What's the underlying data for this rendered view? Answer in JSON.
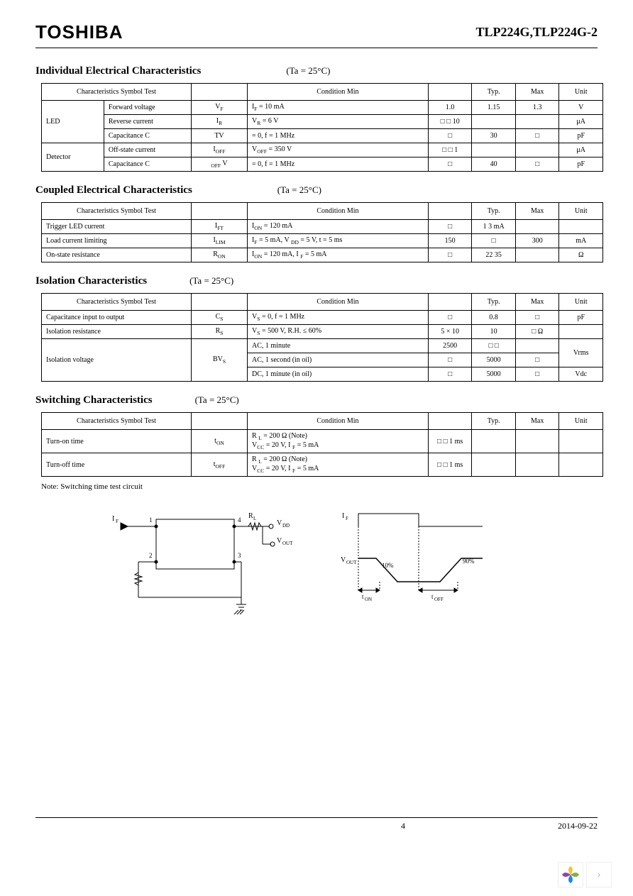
{
  "header": {
    "brand": "TOSHIBA",
    "part_number": "TLP224G,TLP224G-2"
  },
  "sections": [
    {
      "title": "Individual Electrical Characteristics",
      "cond_label": "(Ta  = 25°C)",
      "headers": [
        "Characteristics Symbol Test",
        "",
        "Condition Min",
        "",
        "Typ.",
        "Max",
        "Unit"
      ],
      "col_widths": [
        "10%",
        "14%",
        "9%",
        "29%",
        "7%",
        "7%",
        "7%",
        "7%"
      ],
      "rows": [
        {
          "group": "LED",
          "group_span": 3,
          "char": "Forward voltage",
          "sym": "V",
          "sub": "F",
          "cond": "I<sub>F</sub>  = 10 mA",
          "min": "1.0",
          "typ": "1.15",
          "max": "1.3",
          "unit": "V"
        },
        {
          "char": "Reverse current",
          "sym": "I",
          "sub": "R",
          "cond": "V<sub>R</sub>  = 6 V",
          "min": "□ □ 10",
          "typ": "",
          "max": "",
          "unit": "μA"
        },
        {
          "char": "Capacitance C",
          "sym": "T",
          "sub": "",
          "post": "V",
          "cond": "  = 0, f = 1 MHz",
          "min": "□",
          "typ": "30",
          "max": "□",
          "unit": "pF"
        },
        {
          "group": "Detector",
          "group_span": 2,
          "char": "Off-state current",
          "sym": "I",
          "sub": "OFF",
          "cond": "V<sub>OFF</sub>  = 350 V",
          "min": "□ □ 1",
          "typ": "",
          "max": "",
          "unit": "μA"
        },
        {
          "char": "Capacitance C",
          "sym": "",
          "sub": "OFF",
          "post": " V",
          "cond": "  = 0, f = 1 MHz",
          "min": "□",
          "typ": "40",
          "max": "□",
          "unit": "pF"
        }
      ]
    },
    {
      "title": "Coupled Electrical Characteristics",
      "cond_label": "(Ta  = 25°C)",
      "headers": [
        "Characteristics Symbol Test",
        "",
        "Condition Min",
        "",
        "Typ.",
        "Max",
        "Unit"
      ],
      "col_widths": [
        "24%",
        "9%",
        "29%",
        "7%",
        "7%",
        "7%",
        "7%"
      ],
      "rows": [
        {
          "char": "Trigger LED current",
          "sym": "I",
          "sub": "FT",
          "cond": "I<sub>ON</sub>  = 120 mA",
          "min": "□",
          "typ": "1 3 mA",
          "max": "",
          "unit": ""
        },
        {
          "char": "Load current limiting",
          "sym": "I",
          "sub": "LIM",
          "cond": "I<sub>F</sub>  = 5 mA, V  <sub>DD</sub>  = 5 V, t = 5 ms",
          "min": "150",
          "typ": "□",
          "max": "300",
          "unit": "mA"
        },
        {
          "char": "On-state resistance",
          "sym": "R",
          "sub": "ON",
          "cond": "I<sub>ON</sub>  = 120 mA, I  <sub>F</sub>  = 5 mA",
          "min": "□",
          "typ": "22 35",
          "max": "",
          "unit": "Ω"
        }
      ]
    },
    {
      "title": "Isolation Characteristics",
      "cond_label": "(Ta  = 25°C)",
      "cond_margin": "60px",
      "headers": [
        "Characteristics Symbol Test",
        "",
        "Condition Min",
        "",
        "Typ.",
        "Max",
        "Unit"
      ],
      "col_widths": [
        "24%",
        "9%",
        "29%",
        "7%",
        "7%",
        "7%",
        "7%"
      ],
      "rows": [
        {
          "char": "Capacitance input to output",
          "sym": "C",
          "sub": "S",
          "cond": "V<sub>S</sub>  = 0, f = 1 MHz",
          "min": "□",
          "typ": "0.8",
          "max": "□",
          "unit": "pF"
        },
        {
          "char": "Isolation resistance",
          "sym": "R",
          "sub": "S",
          "cond": "V<sub>S</sub>  = 500 V, R.H. ≤ 60%",
          "min": "5  × 10",
          "typ": "10",
          "max": "□ Ω",
          "unit": ""
        },
        {
          "char": "Isolation voltage",
          "char_span": 3,
          "sym": "BV",
          "sub": "S",
          "sym_span": 3,
          "cond": "AC, 1 minute",
          "min": "2500",
          "typ": "□ □",
          "max": "",
          "unit": "Vrms",
          "unit_span": 2
        },
        {
          "cond": "AC, 1 second (in oil)",
          "min": "□",
          "typ": "5000",
          "max": "□"
        },
        {
          "cond": "DC, 1 minute (in oil)",
          "min": "□",
          "typ": "5000",
          "max": "□",
          "unit": "Vdc"
        }
      ]
    },
    {
      "title": "Switching Characteristics",
      "cond_label": "(Ta  = 25°C)",
      "cond_margin": "60px",
      "headers": [
        "Characteristics Symbol Test",
        "",
        "Condition Min",
        "",
        "Typ.",
        "Max",
        "Unit"
      ],
      "col_widths": [
        "24%",
        "9%",
        "29%",
        "7%",
        "7%",
        "7%",
        "7%"
      ],
      "rows": [
        {
          "char": "Turn-on time",
          "sym": "t",
          "sub": "ON",
          "cond": "R <sub>L</sub>  = 200 Ω (Note)<br>V<sub>CC</sub>  = 20 V, I  <sub>F</sub>  = 5 mA",
          "min": "□ □ 1 ms",
          "typ": "",
          "max": "",
          "unit": ""
        },
        {
          "char": "Turn-off time",
          "sym": "t",
          "sub": "OFF",
          "cond": "R <sub>L</sub>  = 200 Ω (Note)<br>V<sub>CC</sub>  = 20 V, I  <sub>F</sub>  = 5 mA",
          "min": "□ □ 1 ms",
          "typ": "",
          "max": "",
          "unit": ""
        }
      ]
    }
  ],
  "note_text": "Note: Switching time test circuit",
  "circuit": {
    "labels": {
      "if": "I",
      "if_sub": "F",
      "rl": "R",
      "rl_sub": "L",
      "vdd": "V",
      "vdd_sub": "DD",
      "vout": "V",
      "vout_sub": "OUT",
      "p1": "1",
      "p2": "2",
      "p3": "3",
      "p4": "4"
    }
  },
  "timing": {
    "labels": {
      "if": "I",
      "if_sub": "F",
      "vout": "V",
      "vout_sub": "OUT",
      "ten": "t",
      "ten_sub": "ON",
      "toff": "t",
      "toff_sub": "OFF",
      "p10": "10%",
      "p90": "90%"
    }
  },
  "footer": {
    "page": "4",
    "date": "2014-09-22"
  },
  "colors": {
    "text": "#000000",
    "border": "#000000",
    "bg": "#ffffff",
    "logo_y": "#f4c430",
    "logo_g": "#7cb342",
    "logo_b": "#1e88e5",
    "logo_p": "#8e44ad"
  }
}
